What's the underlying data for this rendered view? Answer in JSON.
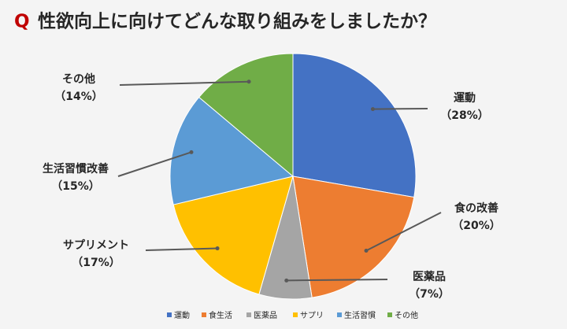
{
  "chart_data": {
    "type": "pie",
    "title_prefix": "Q",
    "title": "性欲向上に向けてどんな取り組みをしましたか？",
    "categories": [
      "運動",
      "食の改善",
      "医薬品",
      "サプリメント",
      "生活習慣改善",
      "その他"
    ],
    "values": [
      28,
      20,
      7,
      17,
      15,
      14
    ],
    "value_labels": [
      "（28%）",
      "（20%）",
      "（7%）",
      "（17%）",
      "（15%）",
      "（14%）"
    ],
    "legend_labels": [
      "運動",
      "食生活",
      "医薬品",
      "サプリ",
      "生活習慣",
      "その他"
    ],
    "colors": [
      "#4472c4",
      "#ed7d31",
      "#a5a5a5",
      "#ffc000",
      "#5b9bd5",
      "#70ad47"
    ]
  }
}
